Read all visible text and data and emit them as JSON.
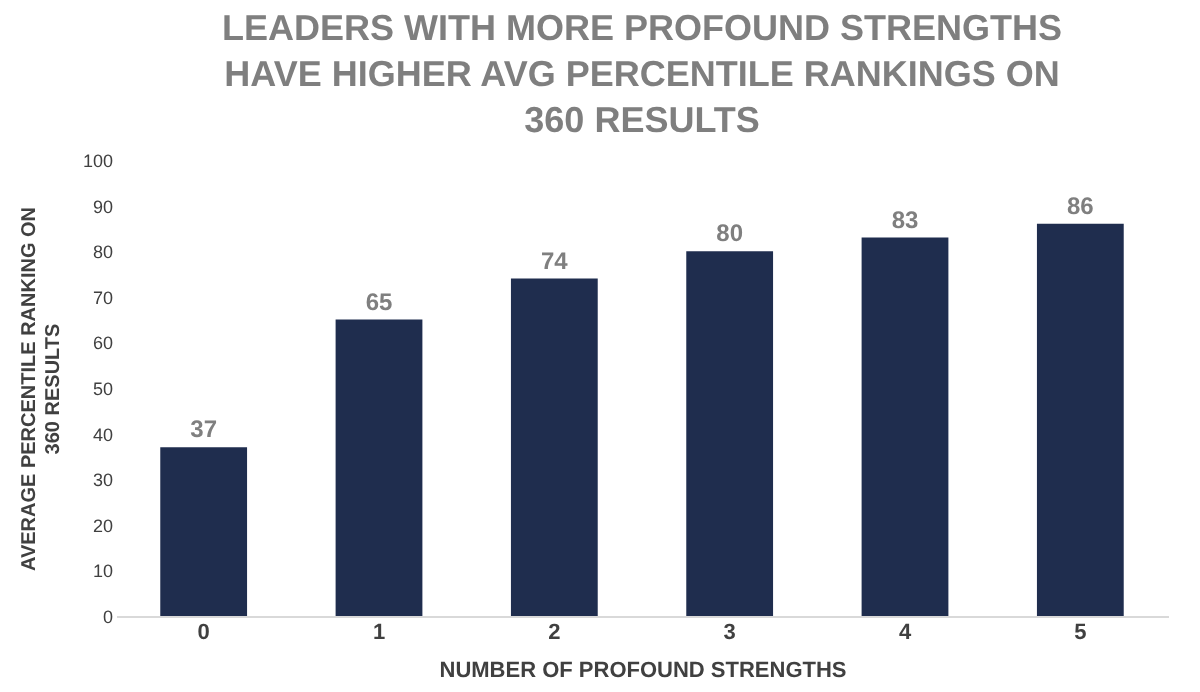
{
  "chart_data": {
    "type": "bar",
    "title": "LEADERS WITH MORE PROFOUND STRENGTHS HAVE HIGHER AVG PERCENTILE RANKINGS ON 360 RESULTS",
    "xlabel": "NUMBER OF PROFOUND STRENGTHS",
    "ylabel": "AVERAGE PERCENTILE RANKING ON 360 RESULTS",
    "categories": [
      "0",
      "1",
      "2",
      "3",
      "4",
      "5"
    ],
    "values": [
      37,
      65,
      74,
      80,
      83,
      86
    ],
    "color": "#1f2d4e",
    "ylim": [
      0,
      100
    ],
    "yticks": [
      0,
      10,
      20,
      30,
      40,
      50,
      60,
      70,
      80,
      90,
      100
    ],
    "grid": false,
    "data_labels": true
  }
}
